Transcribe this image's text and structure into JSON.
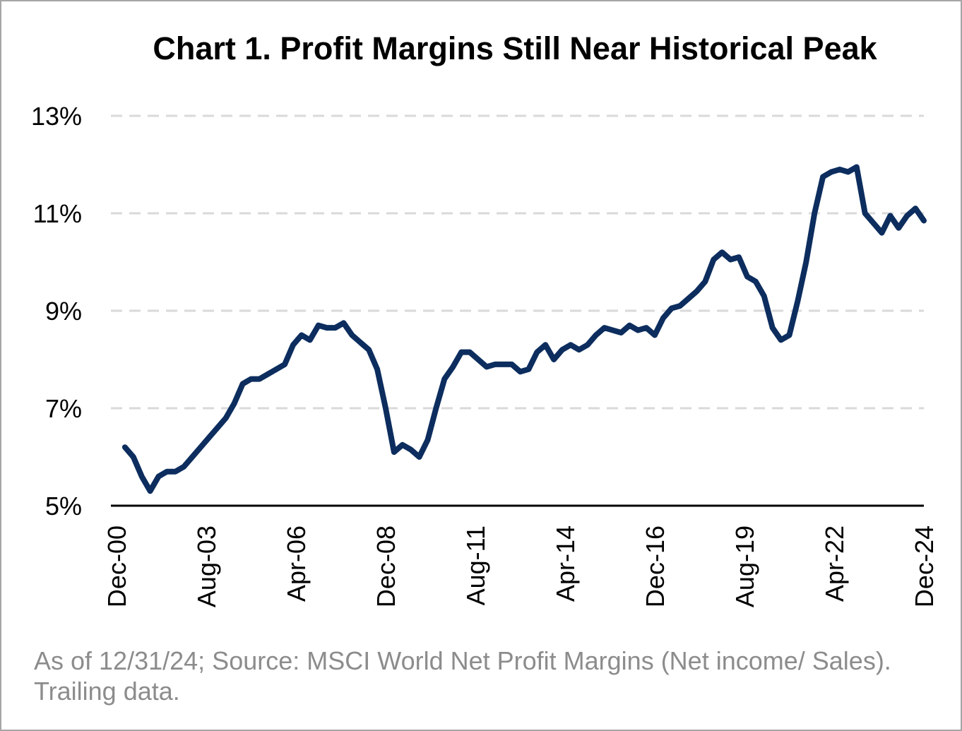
{
  "chart_data": {
    "type": "line",
    "title": "Chart 1. Profit Margins Still Near Historical Peak",
    "xlabel": "",
    "ylabel": "",
    "ylim": [
      5,
      13
    ],
    "y_ticks": [
      "5%",
      "7%",
      "9%",
      "11%",
      "13%"
    ],
    "y_tick_values": [
      5,
      7,
      9,
      11,
      13
    ],
    "x_tick_labels": [
      "Dec-00",
      "Aug-03",
      "Apr-06",
      "Dec-08",
      "Aug-11",
      "Apr-14",
      "Dec-16",
      "Aug-19",
      "Apr-22",
      "Dec-24"
    ],
    "x_tick_dates": [
      "2000-12",
      "2003-08",
      "2006-04",
      "2008-12",
      "2011-08",
      "2014-04",
      "2016-12",
      "2019-08",
      "2022-04",
      "2024-12"
    ],
    "grid": true,
    "legend": "none",
    "line_color": "#0c2d5e",
    "grid_color": "#d9d9d9",
    "series": [
      {
        "x": [
          "2001-03",
          "2001-06",
          "2001-09",
          "2001-12",
          "2002-03",
          "2002-06",
          "2002-09",
          "2002-12",
          "2003-03",
          "2003-06",
          "2003-09",
          "2003-12",
          "2004-03",
          "2004-06",
          "2004-09",
          "2004-12",
          "2005-03",
          "2005-06",
          "2005-09",
          "2005-12",
          "2006-03",
          "2006-06",
          "2006-09",
          "2006-12",
          "2007-03",
          "2007-06",
          "2007-09",
          "2007-12",
          "2008-03",
          "2008-06",
          "2008-09",
          "2008-12",
          "2009-03",
          "2009-06",
          "2009-09",
          "2009-12",
          "2010-03",
          "2010-06",
          "2010-09",
          "2010-12",
          "2011-03",
          "2011-06",
          "2011-09",
          "2011-12",
          "2012-03",
          "2012-06",
          "2012-09",
          "2012-12",
          "2013-03",
          "2013-06",
          "2013-09",
          "2013-12",
          "2014-03",
          "2014-06",
          "2014-09",
          "2014-12",
          "2015-03",
          "2015-06",
          "2015-09",
          "2015-12",
          "2016-03",
          "2016-06",
          "2016-09",
          "2016-12",
          "2017-03",
          "2017-06",
          "2017-09",
          "2017-12",
          "2018-03",
          "2018-06",
          "2018-09",
          "2018-12",
          "2019-03",
          "2019-06",
          "2019-09",
          "2019-12",
          "2020-03",
          "2020-06",
          "2020-09",
          "2020-12",
          "2021-03",
          "2021-06",
          "2021-09",
          "2021-12",
          "2022-03",
          "2022-06",
          "2022-09",
          "2022-12",
          "2023-03",
          "2023-06",
          "2023-09",
          "2023-12",
          "2024-03",
          "2024-06",
          "2024-09",
          "2024-12"
        ],
        "values": [
          6.2,
          6.0,
          5.6,
          5.3,
          5.6,
          5.7,
          5.7,
          5.8,
          6.0,
          6.2,
          6.4,
          6.6,
          6.8,
          7.1,
          7.5,
          7.6,
          7.6,
          7.7,
          7.8,
          7.9,
          8.3,
          8.5,
          8.4,
          8.7,
          8.65,
          8.65,
          8.75,
          8.5,
          8.35,
          8.2,
          7.8,
          7.0,
          6.1,
          6.25,
          6.15,
          6.0,
          6.35,
          7.0,
          7.6,
          7.85,
          8.15,
          8.15,
          8.0,
          7.85,
          7.9,
          7.9,
          7.9,
          7.75,
          7.8,
          8.15,
          8.3,
          8.0,
          8.2,
          8.3,
          8.2,
          8.3,
          8.5,
          8.65,
          8.6,
          8.55,
          8.7,
          8.6,
          8.65,
          8.5,
          8.85,
          9.05,
          9.1,
          9.25,
          9.4,
          9.6,
          10.05,
          10.2,
          10.05,
          10.1,
          9.7,
          9.6,
          9.3,
          8.65,
          8.4,
          8.5,
          9.2,
          10.0,
          11.0,
          11.75,
          11.85,
          11.9,
          11.85,
          11.95,
          11.0,
          10.8,
          10.6,
          10.95,
          10.7,
          10.95,
          11.1,
          10.85
        ]
      }
    ]
  },
  "source_note": "As of 12/31/24; Source: MSCI World Net Profit Margins (Net income/ Sales). Trailing data."
}
